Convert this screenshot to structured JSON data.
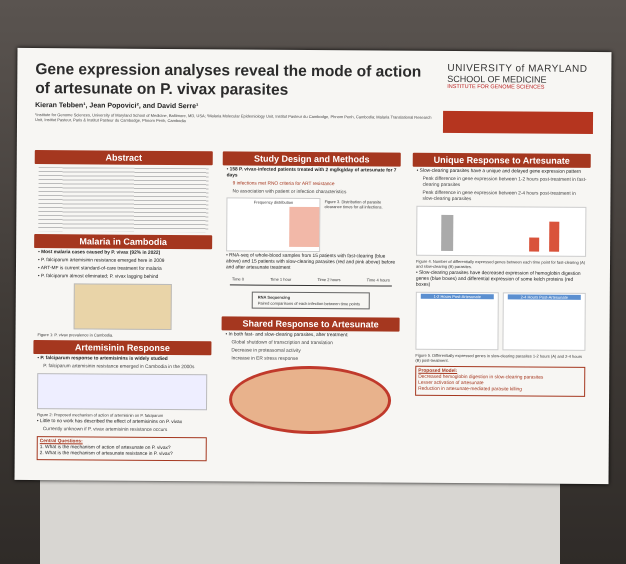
{
  "header": {
    "title": "Gene expression analyses reveal the mode of action of artesunate on P. vivax parasites",
    "authors": "Kieran Tebben¹, Jean Popovici², and David Serre¹",
    "affiliations": "¹Institute for Genome Sciences, University of Maryland School of Medicine, Baltimore, MD, USA; ²Malaria Molecular Epidemiology Unit, Institut Pasteur du Cambodge, Phnom Penh, Cambodia; Malaria Translational Research Unit, Institut Pasteur, Paris & Institut Pasteur du Cambodge, Phnom Penh, Cambodia",
    "logo": [
      "UNIVERSITY of MARYLAND",
      "SCHOOL OF MEDICINE",
      "INSTITUTE FOR GENOME SCIENCES"
    ]
  },
  "sections": {
    "abstract": {
      "title": "Abstract"
    },
    "malaria": {
      "title": "Malaria in Cambodia",
      "bullets": [
        "Most malaria cases caused by P. vivax (92% in 2022)",
        "P. falciparum artemisinin resistance emerged here in 2009",
        "ART-MF is current standard-of-care treatment for malaria",
        "P. falciparum almost eliminated; P. vivax lagging behind"
      ],
      "caption": "Figure 1: P. vivax prevalence in Cambodia."
    },
    "artemisinin": {
      "title": "Artemisinin Response",
      "bullets": [
        "P. falciparum response to artemisinins is widely studied",
        "P. falciparum artemisinin resistance emerged in Cambodia in the 2000s"
      ],
      "caption": "Figure 2: Proposed mechanism of action of artemisinin on P. falciparum",
      "bullets2": [
        "Little to no work has described the effect of artemisinins on P. vivax",
        "Currently unknown if P. vivax artemisinin resistance occurs"
      ],
      "questions_title": "Central Questions:",
      "questions": [
        "1. What is the mechanism of action of artesunate on P. vivax?",
        "2. What is the mechanism of artesunate resistance in P. vivax?"
      ]
    },
    "study": {
      "title": "Study Design and Methods",
      "bullet": "158 P. vivax-infected patients treated with 2 mg/kg/day of artesunate for 7 days",
      "subs": [
        "9 infections met RNO criteria for ART resistance",
        "No association with patient or infection characteristics"
      ],
      "figure_title": "Frequency distribution",
      "caption": "Figure 3. Distribution of parasite clearance times for all infections.",
      "bullet2": "RNA-seq of whole-blood samples from 15 patients with fast-clearing (blue above) and 15 patients with slow-clearing parasites (red and pink above) before and after artesunate treatment",
      "timepoints": [
        "Time 0",
        "Time 1 hour",
        "Time 2 hours",
        "Time 4 hours"
      ],
      "seq": "RNA Sequencing",
      "seq_note": "Paired comparisons of each infection between time points"
    },
    "shared": {
      "title": "Shared Response to Artesunate",
      "bullet": "In both fast- and slow-clearing parasites, after treatment:",
      "subs": [
        "Global shutdown of transcription and translation",
        "Decrease in proteasomal activity",
        "Increase in ER stress response"
      ]
    },
    "unique": {
      "title": "Unique Response to Artesunate",
      "bullet": "Slow-clearing parasites have a unique and delayed gene expression pattern",
      "subs": [
        "Peak difference in gene expression between 1-2 hours post-treatment in fast-clearing parasites",
        "Peak difference in gene expression between 2-4 hours post-treatment in slow-clearing parasites"
      ],
      "caption4": "Figure 4. Number of differentially expressed genes between each time point for fast-clearing (A) and slow-clearing (B) parasites.",
      "bullet2": "Slow-clearing parasites have decreased expression of hemoglobin digestion genes (blue boxes) and differential expression of some kelch proteins (red boxes)",
      "panels": [
        "1-2 Hours Post-Artesunate",
        "2-4 Hours Post-Artesunate"
      ],
      "caption5": "Figure 5. Differentially expressed genes in slow-clearing parasites 1-2 hours (A) and 2-4 hours (B) post-treatment.",
      "model_title": "Proposed Model:",
      "model": [
        "Decreased hemoglobin digestion in slow-clearing parasites",
        "Lesser activation of artesunate",
        "Reduction in artesunate-mediated parasite killing"
      ]
    }
  }
}
